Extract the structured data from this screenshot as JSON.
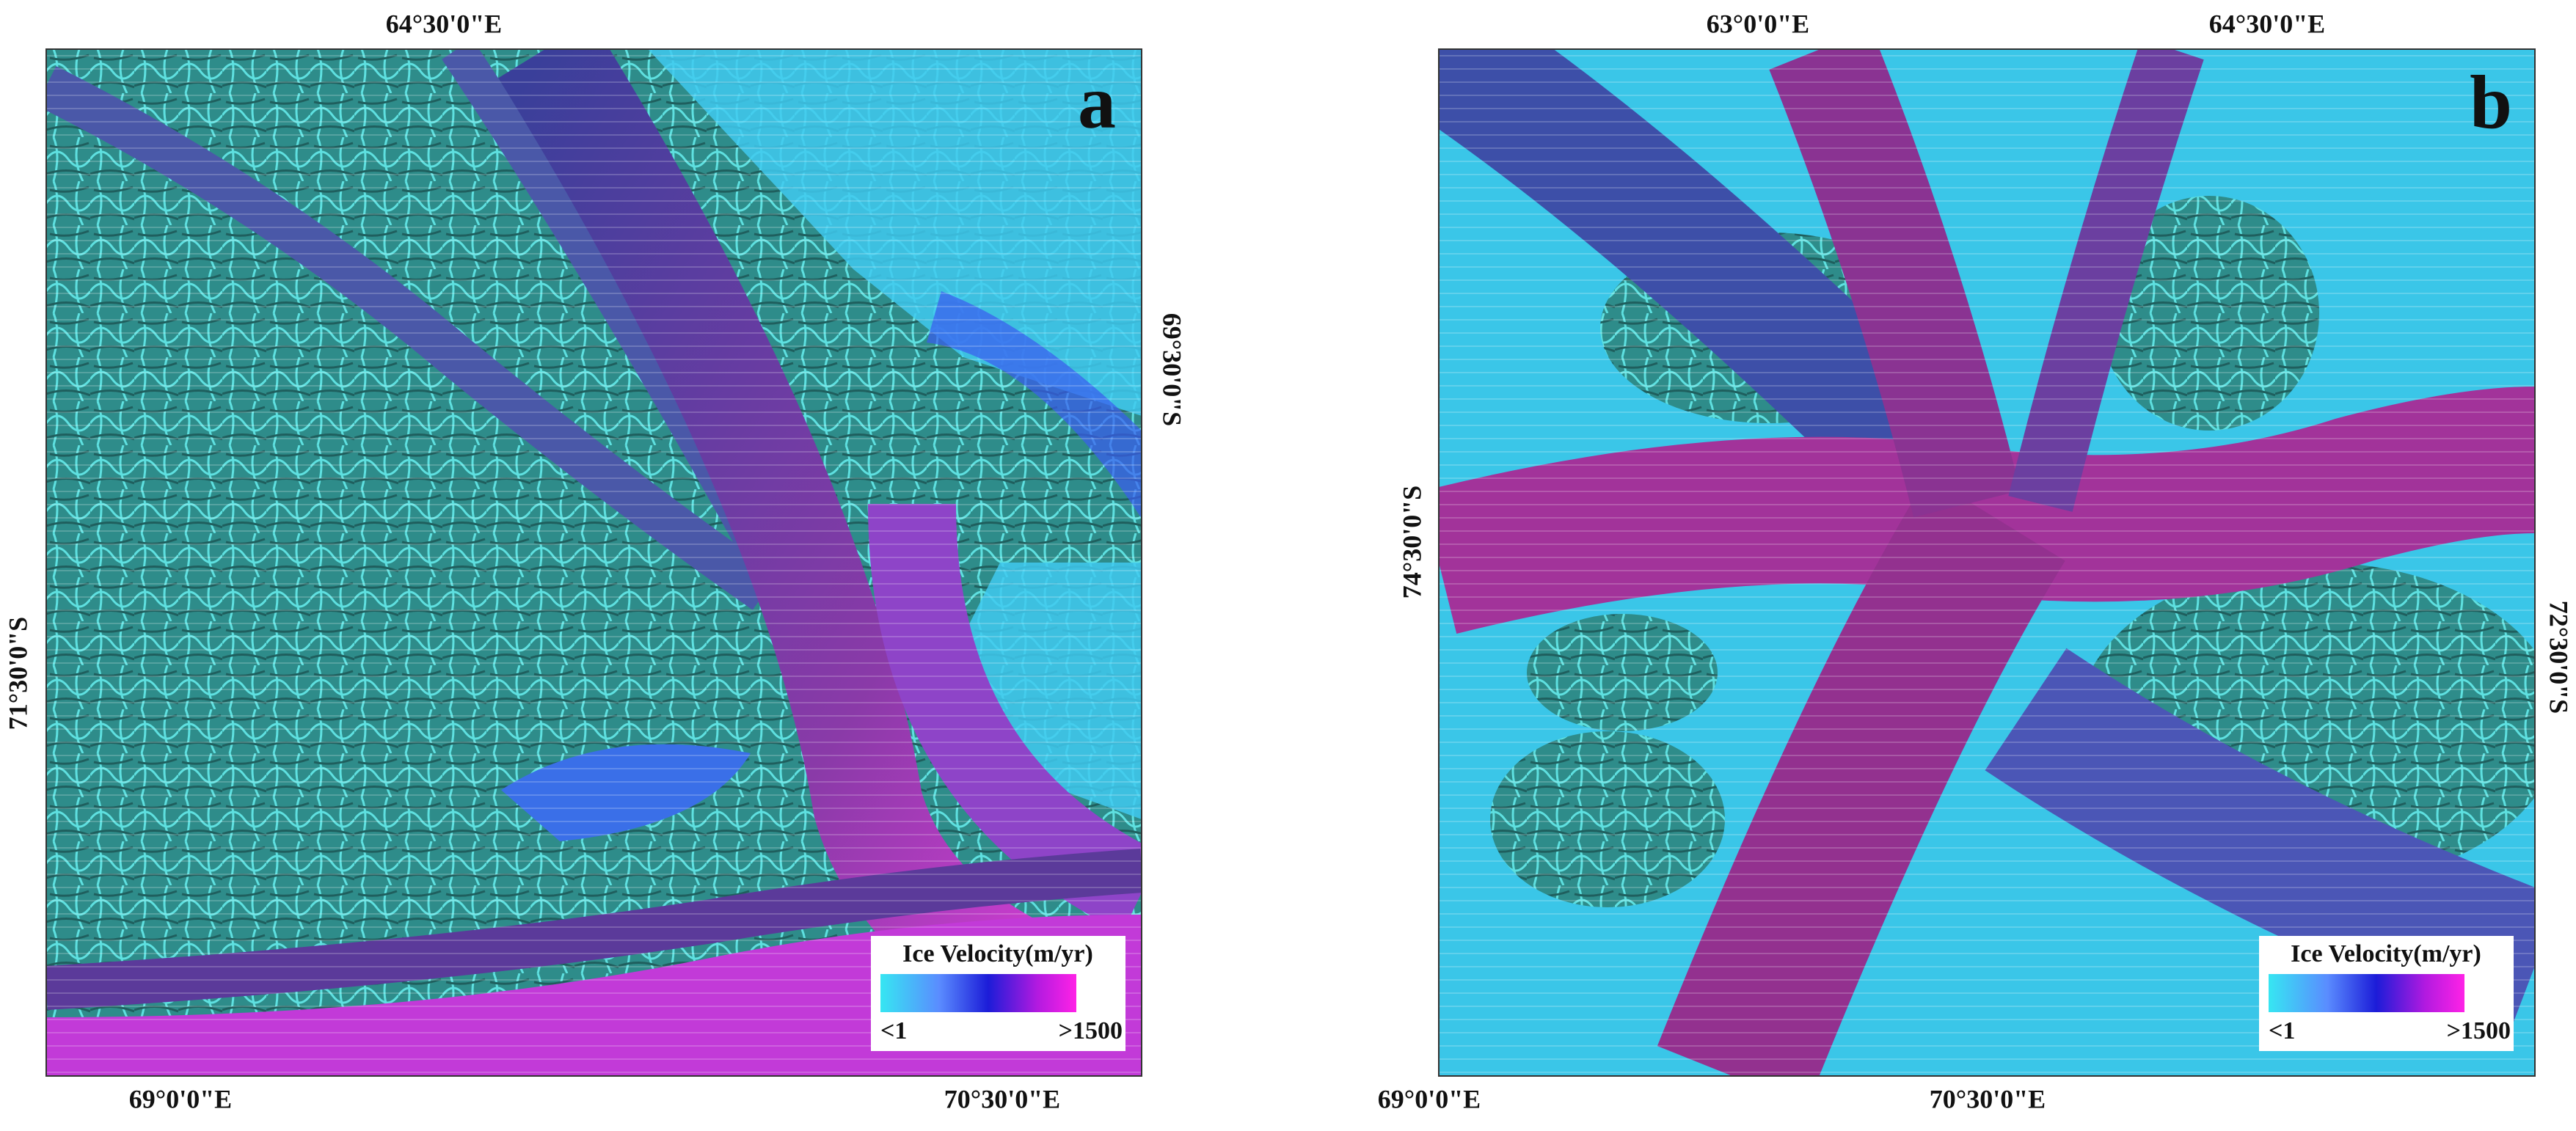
{
  "panels": [
    {
      "label": "a",
      "top_labels": [
        "64°30'0\"E"
      ],
      "bottom_labels": [
        "69°0'0\"E",
        "70°30'0\"E"
      ],
      "left_label": "71°30'0\"S",
      "right_label": "69°30'0\"S",
      "legend": {
        "title": "Ice Velocity(m/yr)",
        "min_label": "<1",
        "max_label": ">1500"
      }
    },
    {
      "label": "b",
      "top_labels": [
        "63°0'0\"E",
        "64°30'0\"E"
      ],
      "bottom_labels": [
        "69°0'0\"E",
        "70°30'0\"E"
      ],
      "left_label": "74°30'0\"S",
      "right_label": "72°30'0\"S",
      "legend": {
        "title": "Ice Velocity(m/yr)",
        "min_label": "<1",
        "max_label": ">1500"
      }
    }
  ]
}
